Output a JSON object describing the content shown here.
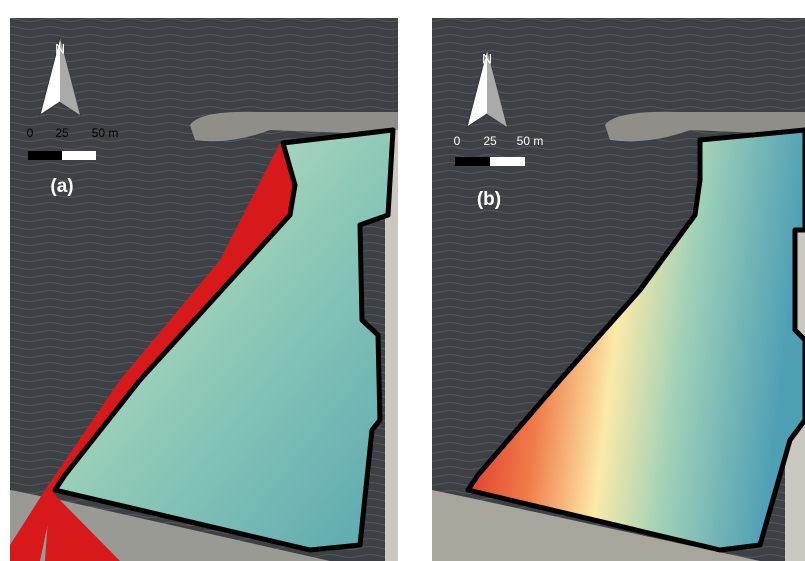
{
  "panels": [
    {
      "label": "(a)",
      "north": "N",
      "scale": [
        "0",
        "25",
        "50 m"
      ]
    },
    {
      "label": "(b)",
      "north": "N",
      "scale": [
        "0",
        "25",
        "50 m"
      ]
    }
  ]
}
